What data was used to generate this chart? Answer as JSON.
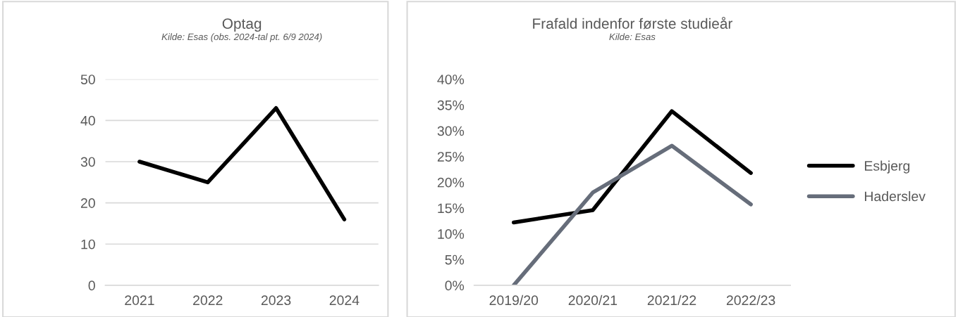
{
  "chart_data": [
    {
      "type": "line",
      "title": "Optag",
      "subtitle": "Kilde: Esas (obs. 2024-tal pt. 6/9 2024)",
      "categories": [
        "2021",
        "2022",
        "2023",
        "2024"
      ],
      "series": [
        {
          "color": "#000000",
          "values": [
            30,
            25,
            43,
            16
          ]
        }
      ],
      "ylim": [
        0,
        50
      ],
      "yticks": [
        0,
        10,
        20,
        30,
        40,
        50
      ],
      "grid": "y",
      "legend": false,
      "marker": "none",
      "line_style": "solid"
    },
    {
      "type": "line",
      "title": "Frafald indenfor første studieår",
      "subtitle": "Kilde: Esas",
      "categories": [
        "2019/20",
        "2020/21",
        "2021/22",
        "2022/23"
      ],
      "series": [
        {
          "name": "Esbjerg",
          "color": "#000000",
          "values": [
            12.2,
            14.6,
            33.8,
            21.8
          ]
        },
        {
          "name": "Haderslev",
          "color": "#666d7a",
          "values": [
            0,
            18.0,
            27.1,
            15.7
          ]
        }
      ],
      "ylim": [
        0,
        40
      ],
      "yticks": [
        {
          "value": 0,
          "label": "0%"
        },
        {
          "value": 5,
          "label": "5%"
        },
        {
          "value": 10,
          "label": "10%"
        },
        {
          "value": 15,
          "label": "15%"
        },
        {
          "value": 20,
          "label": "20%"
        },
        {
          "value": 25,
          "label": "25%"
        },
        {
          "value": 30,
          "label": "30%"
        },
        {
          "value": 35,
          "label": "35%"
        },
        {
          "value": 40,
          "label": "40%"
        }
      ],
      "grid": false,
      "legend": "right",
      "marker": "none",
      "line_style": "solid"
    }
  ]
}
